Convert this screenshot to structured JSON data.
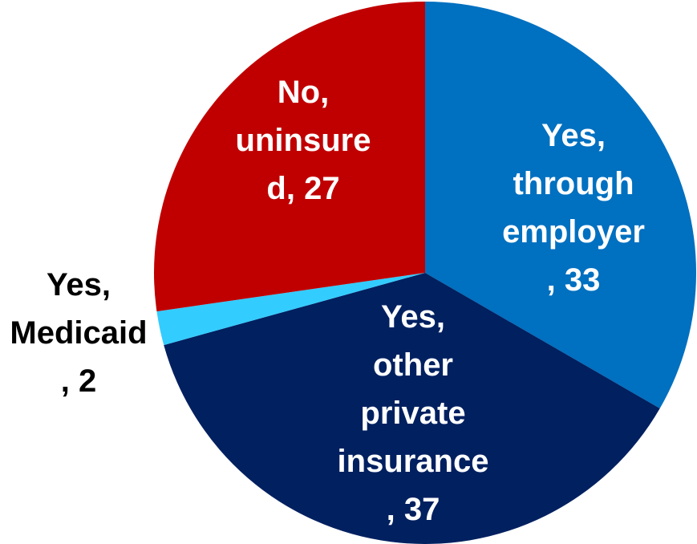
{
  "chart_data": {
    "type": "pie",
    "title": "",
    "start_angle_deg": 0,
    "direction": "clockwise",
    "slices": [
      {
        "category": "Yes, through employer",
        "value": 33,
        "color": "#0070C0",
        "label_lines": [
          "Yes,",
          "through",
          "employer",
          ", 33"
        ],
        "label_color": "#ffffff",
        "label_position": "inside"
      },
      {
        "category": "Yes, other private insurance",
        "value": 37,
        "color": "#002060",
        "label_lines": [
          "Yes,",
          "other",
          "private",
          "insurance",
          ", 37"
        ],
        "label_color": "#ffffff",
        "label_position": "inside"
      },
      {
        "category": "Yes, Medicaid",
        "value": 2,
        "color": "#33CCFF",
        "label_lines": [
          "Yes,",
          "Medicaid",
          ", 2"
        ],
        "label_color": "#000000",
        "label_position": "outside-left"
      },
      {
        "category": "No, uninsured",
        "value": 27,
        "color": "#C00000",
        "label_lines": [
          "No,",
          "uninsure",
          "d, 27"
        ],
        "label_color": "#ffffff",
        "label_position": "inside"
      }
    ]
  }
}
